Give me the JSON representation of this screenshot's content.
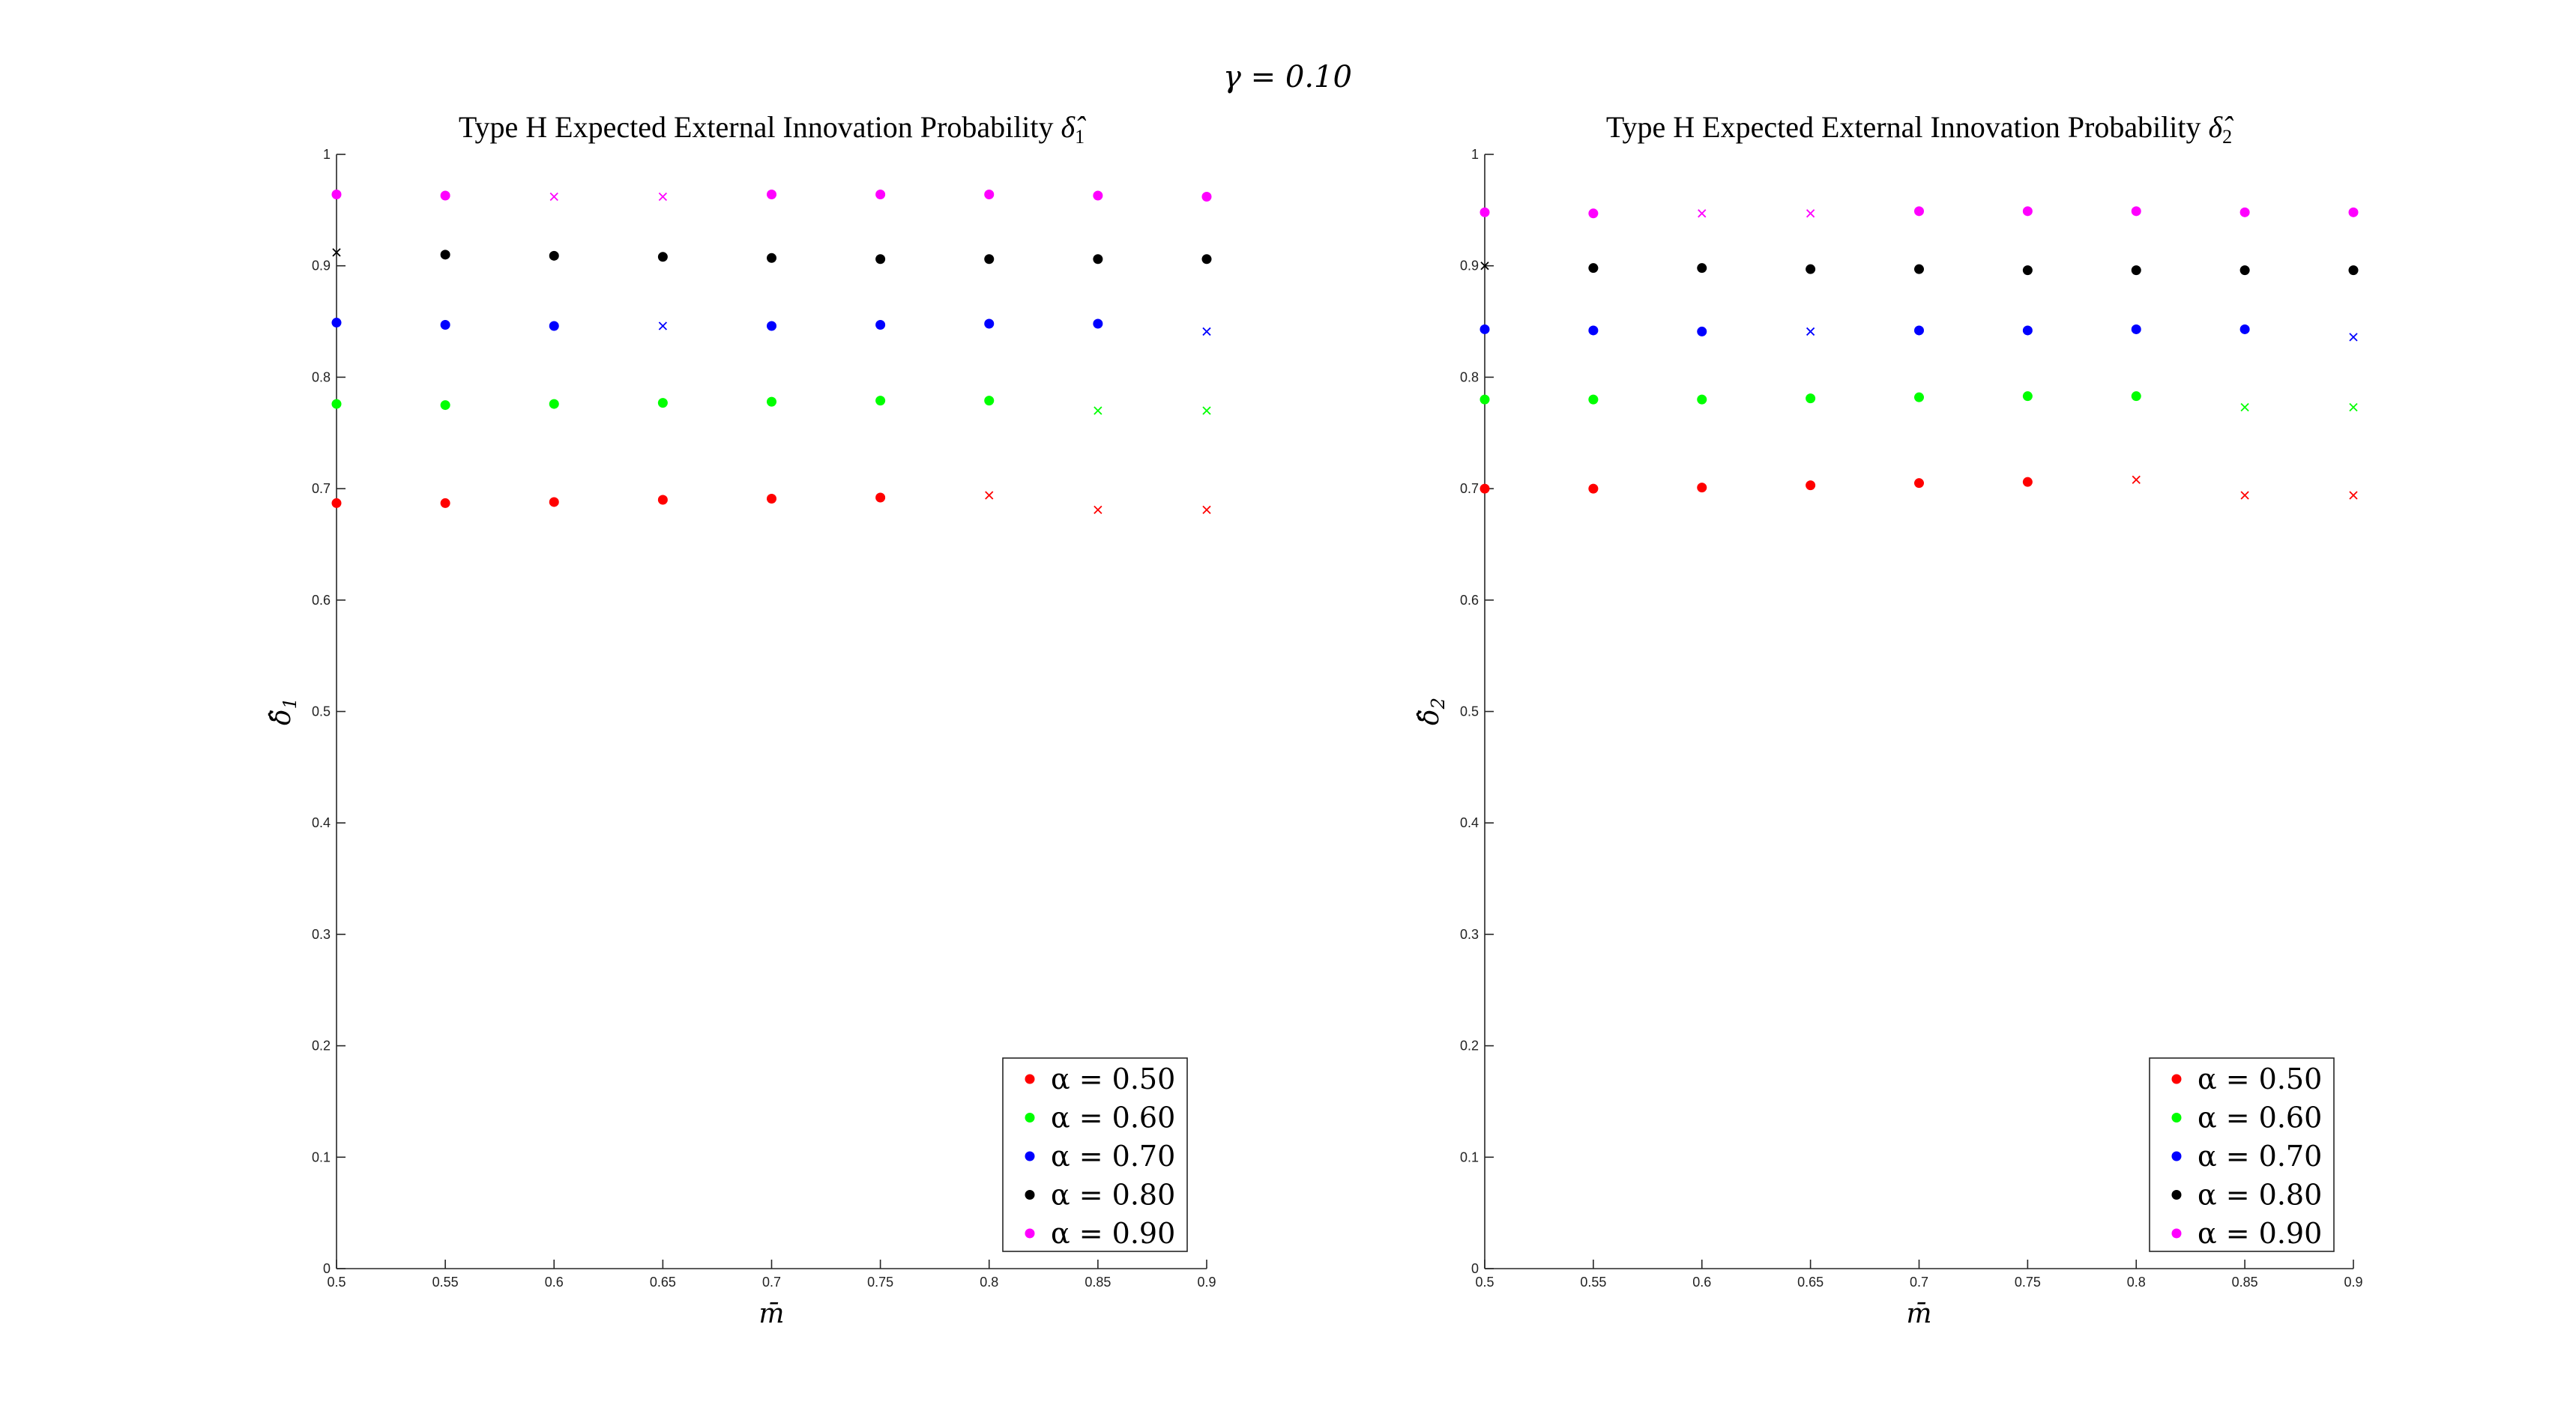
{
  "figure": {
    "suptitle": "γ = 0.10"
  },
  "chart_data": [
    {
      "type": "scatter",
      "title_text": "Type H Expected External Innovation Probability ",
      "title_symbol": "δ̂",
      "title_sub": "1",
      "xlabel": "m̄",
      "ylabel_symbol": "δ̂",
      "ylabel_sub": "1",
      "xlim": [
        0.5,
        0.9
      ],
      "ylim": [
        0,
        1
      ],
      "xticks": [
        "0.5",
        "0.55",
        "0.6",
        "0.65",
        "0.7",
        "0.75",
        "0.8",
        "0.85",
        "0.9"
      ],
      "yticks": [
        "0",
        "0.1",
        "0.2",
        "0.3",
        "0.4",
        "0.5",
        "0.6",
        "0.7",
        "0.8",
        "0.9",
        "1"
      ],
      "legend_position": "bottom-right",
      "x": [
        0.5,
        0.55,
        0.6,
        0.65,
        0.7,
        0.75,
        0.8,
        0.85,
        0.9
      ],
      "series": [
        {
          "name": "α = 0.50",
          "color": "#ff0000",
          "values": [
            0.687,
            0.687,
            0.688,
            0.69,
            0.691,
            0.692,
            0.694,
            0.681,
            0.681
          ],
          "markers": [
            "dot",
            "dot",
            "dot",
            "dot",
            "dot",
            "dot",
            "x",
            "x",
            "x"
          ]
        },
        {
          "name": "α = 0.60",
          "color": "#00ff00",
          "values": [
            0.776,
            0.775,
            0.776,
            0.777,
            0.778,
            0.779,
            0.779,
            0.77,
            0.77
          ],
          "markers": [
            "dot",
            "dot",
            "dot",
            "dot",
            "dot",
            "dot",
            "dot",
            "x",
            "x"
          ]
        },
        {
          "name": "α = 0.70",
          "color": "#0000ff",
          "values": [
            0.849,
            0.847,
            0.846,
            0.846,
            0.846,
            0.847,
            0.848,
            0.848,
            0.841
          ],
          "markers": [
            "dot",
            "dot",
            "dot",
            "x",
            "dot",
            "dot",
            "dot",
            "dot",
            "x"
          ]
        },
        {
          "name": "α = 0.80",
          "color": "#000000",
          "values": [
            0.912,
            0.91,
            0.909,
            0.908,
            0.907,
            0.906,
            0.906,
            0.906,
            0.906
          ],
          "markers": [
            "x",
            "dot",
            "dot",
            "dot",
            "dot",
            "dot",
            "dot",
            "dot",
            "dot"
          ]
        },
        {
          "name": "α = 0.90",
          "color": "#ff00ff",
          "values": [
            0.964,
            0.963,
            0.962,
            0.962,
            0.964,
            0.964,
            0.964,
            0.963,
            0.962
          ],
          "markers": [
            "dot",
            "dot",
            "x",
            "x",
            "dot",
            "dot",
            "dot",
            "dot",
            "dot"
          ]
        }
      ]
    },
    {
      "type": "scatter",
      "title_text": "Type H Expected External Innovation Probability ",
      "title_symbol": "δ̂",
      "title_sub": "2",
      "xlabel": "m̄",
      "ylabel_symbol": "δ̂",
      "ylabel_sub": "2",
      "xlim": [
        0.5,
        0.9
      ],
      "ylim": [
        0,
        1
      ],
      "xticks": [
        "0.5",
        "0.55",
        "0.6",
        "0.65",
        "0.7",
        "0.75",
        "0.8",
        "0.85",
        "0.9"
      ],
      "yticks": [
        "0",
        "0.1",
        "0.2",
        "0.3",
        "0.4",
        "0.5",
        "0.6",
        "0.7",
        "0.8",
        "0.9",
        "1"
      ],
      "legend_position": "bottom-right",
      "x": [
        0.5,
        0.55,
        0.6,
        0.65,
        0.7,
        0.75,
        0.8,
        0.85,
        0.9
      ],
      "series": [
        {
          "name": "α = 0.50",
          "color": "#ff0000",
          "values": [
            0.7,
            0.7,
            0.701,
            0.703,
            0.705,
            0.706,
            0.708,
            0.694,
            0.694
          ],
          "markers": [
            "dot",
            "dot",
            "dot",
            "dot",
            "dot",
            "dot",
            "x",
            "x",
            "x"
          ]
        },
        {
          "name": "α = 0.60",
          "color": "#00ff00",
          "values": [
            0.78,
            0.78,
            0.78,
            0.781,
            0.782,
            0.783,
            0.783,
            0.773,
            0.773
          ],
          "markers": [
            "dot",
            "dot",
            "dot",
            "dot",
            "dot",
            "dot",
            "dot",
            "x",
            "x"
          ]
        },
        {
          "name": "α = 0.70",
          "color": "#0000ff",
          "values": [
            0.843,
            0.842,
            0.841,
            0.841,
            0.842,
            0.842,
            0.843,
            0.843,
            0.836
          ],
          "markers": [
            "dot",
            "dot",
            "dot",
            "x",
            "dot",
            "dot",
            "dot",
            "dot",
            "x"
          ]
        },
        {
          "name": "α = 0.80",
          "color": "#000000",
          "values": [
            0.9,
            0.898,
            0.898,
            0.897,
            0.897,
            0.896,
            0.896,
            0.896,
            0.896
          ],
          "markers": [
            "x",
            "dot",
            "dot",
            "dot",
            "dot",
            "dot",
            "dot",
            "dot",
            "dot"
          ]
        },
        {
          "name": "α = 0.90",
          "color": "#ff00ff",
          "values": [
            0.948,
            0.947,
            0.947,
            0.947,
            0.949,
            0.949,
            0.949,
            0.948,
            0.948
          ],
          "markers": [
            "dot",
            "dot",
            "x",
            "x",
            "dot",
            "dot",
            "dot",
            "dot",
            "dot"
          ]
        }
      ]
    }
  ]
}
